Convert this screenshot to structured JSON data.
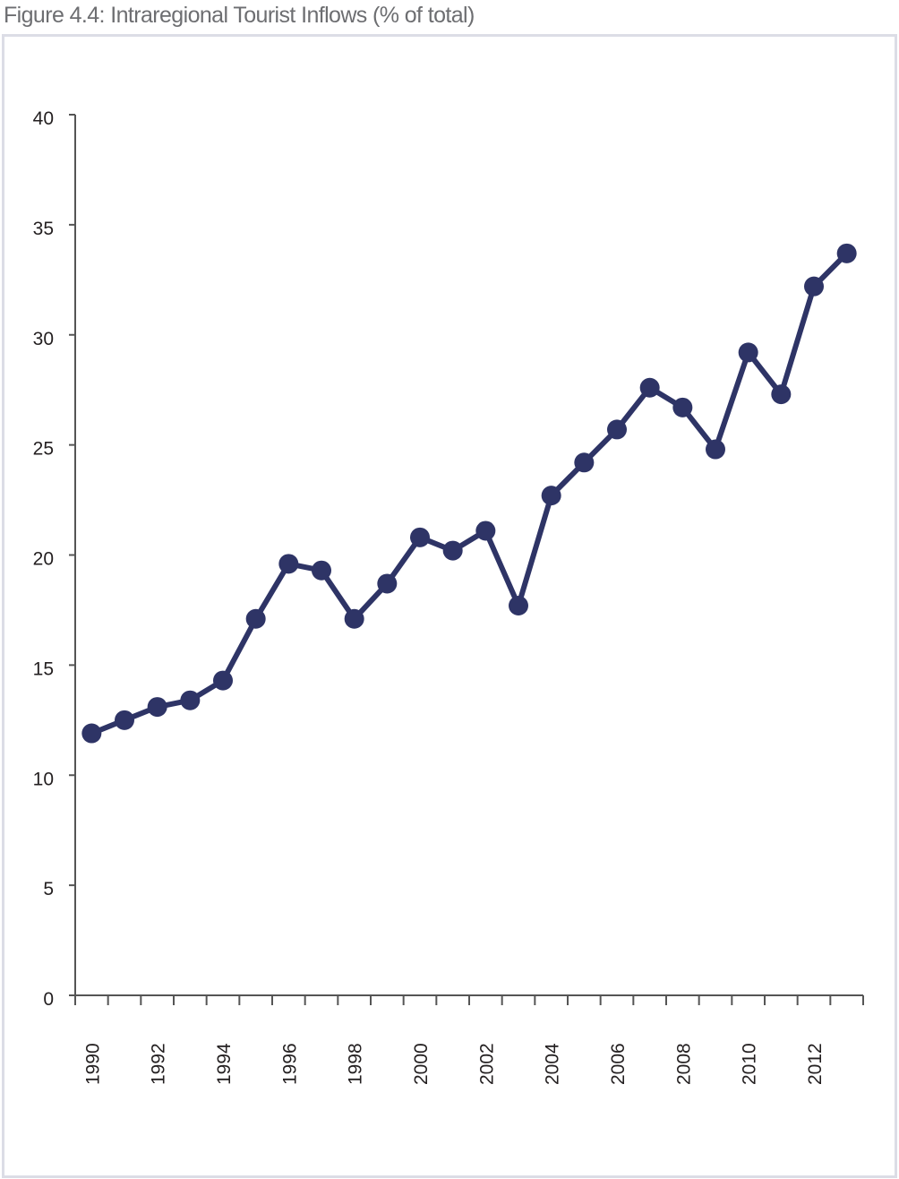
{
  "figure_title": "Figure 4.4: Intraregional Tourist Inflows (% of total)",
  "colors": {
    "line": "#2e3466",
    "axis": "#555555",
    "frame": "#dcdde6",
    "title": "#6d6e71"
  },
  "chart_data": {
    "type": "line",
    "title": "Figure 4.4: Intraregional Tourist Inflows (% of total)",
    "xlabel": "",
    "ylabel": "",
    "ylim": [
      0,
      40
    ],
    "xlim": [
      1989.5,
      2013.5
    ],
    "grid": false,
    "y_ticks": [
      "0",
      "5",
      "10",
      "15",
      "20",
      "25",
      "30",
      "35",
      "40"
    ],
    "x_tick_labels": [
      "1990",
      "1992",
      "1994",
      "1996",
      "1998",
      "2000",
      "2002",
      "2004",
      "2006",
      "2008",
      "2010",
      "2012"
    ],
    "x": [
      1990,
      1991,
      1992,
      1993,
      1994,
      1995,
      1996,
      1997,
      1998,
      1999,
      2000,
      2001,
      2002,
      2003,
      2004,
      2005,
      2006,
      2007,
      2008,
      2009,
      2010,
      2011,
      2012,
      2013
    ],
    "series": [
      {
        "values": [
          11.9,
          12.5,
          13.1,
          13.4,
          14.3,
          17.1,
          19.6,
          19.3,
          17.1,
          18.7,
          20.8,
          20.2,
          21.1,
          17.7,
          22.7,
          24.2,
          25.7,
          27.6,
          26.7,
          24.8,
          29.2,
          27.3,
          32.2,
          33.7
        ]
      }
    ]
  }
}
